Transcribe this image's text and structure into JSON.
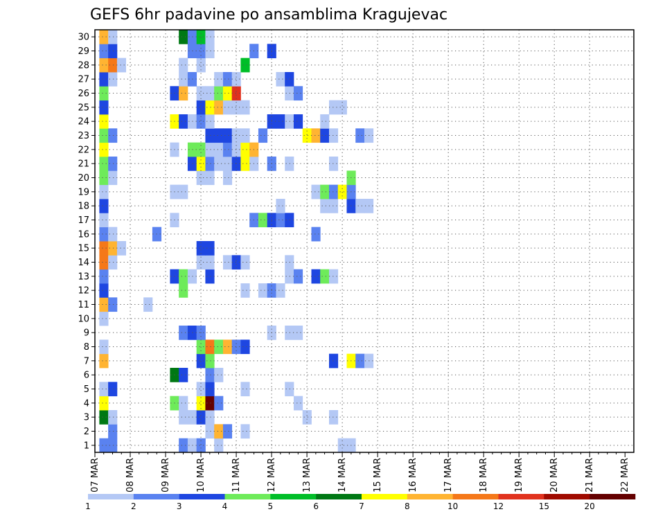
{
  "chart_data": {
    "type": "heatmap",
    "title": "GEFS 6hr padavine po ansamblima Kragujevac",
    "xlabel": "",
    "ylabel": "",
    "x_ticks": [
      "07 MAR",
      "08 MAR",
      "09 MAR",
      "10 MAR",
      "11 MAR",
      "12 MAR",
      "13 MAR",
      "14 MAR",
      "15 MAR",
      "16 MAR",
      "17 MAR",
      "18 MAR",
      "19 MAR",
      "20 MAR",
      "21 MAR",
      "22 MAR"
    ],
    "y_ticks": [
      "1",
      "2",
      "3",
      "4",
      "5",
      "6",
      "7",
      "8",
      "9",
      "10",
      "11",
      "12",
      "13",
      "14",
      "15",
      "16",
      "17",
      "18",
      "19",
      "20",
      "21",
      "22",
      "23",
      "24",
      "25",
      "26",
      "27",
      "28",
      "29",
      "30"
    ],
    "xlim": [
      0,
      61
    ],
    "ylim": [
      0.5,
      30.5
    ],
    "grid": true,
    "time_step_hours": 6,
    "colorbar": {
      "labels": [
        "1",
        "2",
        "3",
        "4",
        "5",
        "6",
        "7",
        "8",
        "10",
        "12",
        "15",
        "20"
      ],
      "colors": [
        "#b4c8f5",
        "#5a82f0",
        "#1e46e1",
        "#6eeb5a",
        "#00be28",
        "#007814",
        "#ffff00",
        "#ffb432",
        "#f57819",
        "#e1321e",
        "#a00a00",
        "#640000"
      ]
    },
    "cells": [
      [
        1,
        1,
        2
      ],
      [
        2,
        1,
        2
      ],
      [
        10,
        1,
        2
      ],
      [
        11,
        1,
        1
      ],
      [
        12,
        1,
        2
      ],
      [
        14,
        1,
        1
      ],
      [
        28,
        1,
        1
      ],
      [
        29,
        1,
        1
      ],
      [
        2,
        2,
        2
      ],
      [
        13,
        2,
        1
      ],
      [
        14,
        2,
        8
      ],
      [
        15,
        2,
        2
      ],
      [
        17,
        2,
        1
      ],
      [
        1,
        3,
        6
      ],
      [
        2,
        3,
        1
      ],
      [
        10,
        3,
        1
      ],
      [
        11,
        3,
        1
      ],
      [
        12,
        3,
        3
      ],
      [
        13,
        3,
        1
      ],
      [
        24,
        3,
        1
      ],
      [
        27,
        3,
        1
      ],
      [
        1,
        4,
        7
      ],
      [
        9,
        4,
        4
      ],
      [
        10,
        4,
        1
      ],
      [
        12,
        4,
        7
      ],
      [
        13,
        4,
        12
      ],
      [
        14,
        4,
        2
      ],
      [
        23,
        4,
        1
      ],
      [
        1,
        5,
        1
      ],
      [
        2,
        5,
        3
      ],
      [
        12,
        5,
        1
      ],
      [
        13,
        5,
        3
      ],
      [
        17,
        5,
        1
      ],
      [
        22,
        5,
        1
      ],
      [
        9,
        6,
        6
      ],
      [
        10,
        6,
        3
      ],
      [
        13,
        6,
        2
      ],
      [
        14,
        6,
        1
      ],
      [
        1,
        7,
        8
      ],
      [
        12,
        7,
        3
      ],
      [
        13,
        7,
        4
      ],
      [
        27,
        7,
        3
      ],
      [
        29,
        7,
        7
      ],
      [
        30,
        7,
        2
      ],
      [
        31,
        7,
        1
      ],
      [
        1,
        8,
        1
      ],
      [
        12,
        8,
        4
      ],
      [
        13,
        8,
        9
      ],
      [
        14,
        8,
        4
      ],
      [
        15,
        8,
        8
      ],
      [
        16,
        8,
        2
      ],
      [
        17,
        8,
        3
      ],
      [
        10,
        9,
        2
      ],
      [
        11,
        9,
        3
      ],
      [
        12,
        9,
        2
      ],
      [
        20,
        9,
        1
      ],
      [
        22,
        9,
        1
      ],
      [
        23,
        9,
        1
      ],
      [
        1,
        10,
        1
      ],
      [
        1,
        11,
        8
      ],
      [
        2,
        11,
        2
      ],
      [
        6,
        11,
        1
      ],
      [
        1,
        12,
        3
      ],
      [
        10,
        12,
        4
      ],
      [
        17,
        12,
        1
      ],
      [
        19,
        12,
        1
      ],
      [
        20,
        12,
        2
      ],
      [
        21,
        12,
        1
      ],
      [
        1,
        13,
        2
      ],
      [
        9,
        13,
        3
      ],
      [
        10,
        13,
        4
      ],
      [
        11,
        13,
        1
      ],
      [
        13,
        13,
        3
      ],
      [
        22,
        13,
        1
      ],
      [
        23,
        13,
        2
      ],
      [
        25,
        13,
        3
      ],
      [
        26,
        13,
        4
      ],
      [
        27,
        13,
        1
      ],
      [
        1,
        14,
        9
      ],
      [
        2,
        14,
        1
      ],
      [
        12,
        14,
        1
      ],
      [
        13,
        14,
        1
      ],
      [
        15,
        14,
        1
      ],
      [
        16,
        14,
        3
      ],
      [
        17,
        14,
        1
      ],
      [
        22,
        14,
        1
      ],
      [
        1,
        15,
        9
      ],
      [
        2,
        15,
        8
      ],
      [
        3,
        15,
        1
      ],
      [
        12,
        15,
        3
      ],
      [
        13,
        15,
        3
      ],
      [
        1,
        16,
        2
      ],
      [
        2,
        16,
        1
      ],
      [
        7,
        16,
        2
      ],
      [
        25,
        16,
        2
      ],
      [
        1,
        17,
        1
      ],
      [
        9,
        17,
        1
      ],
      [
        18,
        17,
        2
      ],
      [
        19,
        17,
        4
      ],
      [
        20,
        17,
        3
      ],
      [
        21,
        17,
        2
      ],
      [
        22,
        17,
        3
      ],
      [
        1,
        18,
        3
      ],
      [
        21,
        18,
        1
      ],
      [
        26,
        18,
        1
      ],
      [
        27,
        18,
        1
      ],
      [
        29,
        18,
        3
      ],
      [
        30,
        18,
        1
      ],
      [
        31,
        18,
        1
      ],
      [
        1,
        19,
        1
      ],
      [
        9,
        19,
        1
      ],
      [
        10,
        19,
        1
      ],
      [
        25,
        19,
        1
      ],
      [
        26,
        19,
        4
      ],
      [
        27,
        19,
        2
      ],
      [
        28,
        19,
        7
      ],
      [
        29,
        19,
        2
      ],
      [
        1,
        20,
        4
      ],
      [
        2,
        20,
        1
      ],
      [
        12,
        20,
        1
      ],
      [
        13,
        20,
        1
      ],
      [
        15,
        20,
        1
      ],
      [
        29,
        20,
        4
      ],
      [
        1,
        21,
        4
      ],
      [
        2,
        21,
        2
      ],
      [
        11,
        21,
        3
      ],
      [
        12,
        21,
        7
      ],
      [
        13,
        21,
        2
      ],
      [
        14,
        21,
        1
      ],
      [
        15,
        21,
        1
      ],
      [
        16,
        21,
        3
      ],
      [
        17,
        21,
        7
      ],
      [
        18,
        21,
        1
      ],
      [
        20,
        21,
        2
      ],
      [
        22,
        21,
        1
      ],
      [
        27,
        21,
        1
      ],
      [
        1,
        22,
        7
      ],
      [
        9,
        22,
        1
      ],
      [
        11,
        22,
        4
      ],
      [
        12,
        22,
        4
      ],
      [
        13,
        22,
        1
      ],
      [
        14,
        22,
        1
      ],
      [
        15,
        22,
        2
      ],
      [
        16,
        22,
        1
      ],
      [
        17,
        22,
        7
      ],
      [
        18,
        22,
        8
      ],
      [
        1,
        23,
        4
      ],
      [
        2,
        23,
        2
      ],
      [
        13,
        23,
        3
      ],
      [
        14,
        23,
        3
      ],
      [
        15,
        23,
        3
      ],
      [
        16,
        23,
        1
      ],
      [
        17,
        23,
        1
      ],
      [
        19,
        23,
        2
      ],
      [
        24,
        23,
        7
      ],
      [
        25,
        23,
        8
      ],
      [
        26,
        23,
        3
      ],
      [
        27,
        23,
        1
      ],
      [
        30,
        23,
        2
      ],
      [
        31,
        23,
        1
      ],
      [
        1,
        24,
        7
      ],
      [
        9,
        24,
        7
      ],
      [
        10,
        24,
        3
      ],
      [
        11,
        24,
        1
      ],
      [
        12,
        24,
        2
      ],
      [
        13,
        24,
        1
      ],
      [
        20,
        24,
        3
      ],
      [
        21,
        24,
        3
      ],
      [
        22,
        24,
        1
      ],
      [
        23,
        24,
        3
      ],
      [
        26,
        24,
        1
      ],
      [
        1,
        25,
        3
      ],
      [
        12,
        25,
        3
      ],
      [
        13,
        25,
        7
      ],
      [
        14,
        25,
        8
      ],
      [
        15,
        25,
        1
      ],
      [
        16,
        25,
        1
      ],
      [
        17,
        25,
        1
      ],
      [
        27,
        25,
        1
      ],
      [
        28,
        25,
        1
      ],
      [
        1,
        26,
        4
      ],
      [
        9,
        26,
        3
      ],
      [
        10,
        26,
        8
      ],
      [
        12,
        26,
        1
      ],
      [
        13,
        26,
        1
      ],
      [
        14,
        26,
        4
      ],
      [
        15,
        26,
        7
      ],
      [
        16,
        26,
        10
      ],
      [
        22,
        26,
        1
      ],
      [
        23,
        26,
        2
      ],
      [
        1,
        27,
        3
      ],
      [
        2,
        27,
        1
      ],
      [
        10,
        27,
        1
      ],
      [
        11,
        27,
        2
      ],
      [
        14,
        27,
        1
      ],
      [
        15,
        27,
        2
      ],
      [
        16,
        27,
        1
      ],
      [
        21,
        27,
        1
      ],
      [
        22,
        27,
        3
      ],
      [
        1,
        28,
        8
      ],
      [
        2,
        28,
        9
      ],
      [
        3,
        28,
        1
      ],
      [
        10,
        28,
        1
      ],
      [
        12,
        28,
        1
      ],
      [
        17,
        28,
        5
      ],
      [
        1,
        29,
        2
      ],
      [
        2,
        29,
        3
      ],
      [
        11,
        29,
        2
      ],
      [
        12,
        29,
        2
      ],
      [
        13,
        29,
        1
      ],
      [
        18,
        29,
        2
      ],
      [
        20,
        29,
        3
      ],
      [
        1,
        30,
        8
      ],
      [
        2,
        30,
        1
      ],
      [
        10,
        30,
        6
      ],
      [
        11,
        30,
        2
      ],
      [
        12,
        30,
        5
      ],
      [
        13,
        30,
        1
      ]
    ]
  }
}
